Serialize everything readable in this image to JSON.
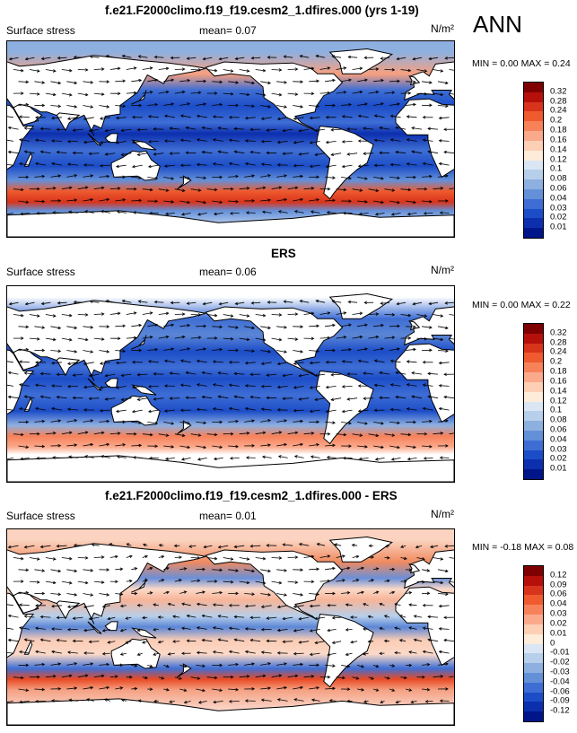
{
  "annotation": "ANN",
  "panels": [
    {
      "title": "f.e21.F2000climo.f19_f19.cesm2_1.dfires.000 (yrs 1-19)",
      "variable": "Surface stress",
      "mean_label": "mean=  0.07",
      "units": "N/m²",
      "minmax": "MIN =  0.00 MAX =  0.24",
      "levels": [
        "0.32",
        "0.28",
        "0.24",
        "0.2",
        "0.18",
        "0.16",
        "0.14",
        "0.12",
        "0.1",
        "0.08",
        "0.06",
        "0.04",
        "0.03",
        "0.02",
        "0.01"
      ]
    },
    {
      "title": "ERS",
      "variable": "Surface stress",
      "mean_label": "mean=  0.06",
      "units": "N/m²",
      "minmax": "MIN =  0.00 MAX =  0.22",
      "levels": [
        "0.32",
        "0.28",
        "0.24",
        "0.2",
        "0.18",
        "0.16",
        "0.14",
        "0.12",
        "0.1",
        "0.08",
        "0.06",
        "0.04",
        "0.03",
        "0.02",
        "0.01"
      ]
    },
    {
      "title": "f.e21.F2000climo.f19_f19.cesm2_1.dfires.000 - ERS",
      "variable": "Surface stress",
      "mean_label": "mean=  0.01",
      "units": "N/m²",
      "minmax": "MIN = -0.18 MAX =  0.08",
      "levels": [
        "0.12",
        "0.09",
        "0.06",
        "0.04",
        "0.03",
        "0.02",
        "0.01",
        "0",
        "-0.01",
        "-0.02",
        "-0.03",
        "-0.04",
        "-0.06",
        "-0.09",
        "-0.12"
      ]
    }
  ],
  "colors": {
    "colorbar": [
      "#7f0000",
      "#b5100a",
      "#d8341b",
      "#ef5a2e",
      "#f7825a",
      "#fba98b",
      "#fdcfb5",
      "#fcecd9",
      "#dbe6f4",
      "#b7cfea",
      "#8eb0e0",
      "#6490d8",
      "#3e6ed4",
      "#1c4dc8",
      "#0c2fae",
      "#00158a"
    ],
    "land": "#ffffff",
    "coast": "#000000"
  },
  "chart_data": [
    {
      "type": "heatmap",
      "title": "f.e21.F2000climo.f19_f19.cesm2_1.dfires.000 (yrs 1-19)",
      "variable": "Surface stress",
      "units": "N/m^2",
      "mean": 0.07,
      "min": 0.0,
      "max": 0.24,
      "contour_levels": [
        0.01,
        0.02,
        0.03,
        0.04,
        0.06,
        0.08,
        0.1,
        0.12,
        0.14,
        0.16,
        0.18,
        0.2,
        0.24,
        0.28,
        0.32
      ],
      "overlay": "wind stress vectors"
    },
    {
      "type": "heatmap",
      "title": "ERS",
      "variable": "Surface stress",
      "units": "N/m^2",
      "mean": 0.06,
      "min": 0.0,
      "max": 0.22,
      "contour_levels": [
        0.01,
        0.02,
        0.03,
        0.04,
        0.06,
        0.08,
        0.1,
        0.12,
        0.14,
        0.16,
        0.18,
        0.2,
        0.24,
        0.28,
        0.32
      ],
      "overlay": "wind stress vectors"
    },
    {
      "type": "heatmap",
      "title": "f.e21.F2000climo.f19_f19.cesm2_1.dfires.000 - ERS",
      "variable": "Surface stress",
      "units": "N/m^2",
      "mean": 0.01,
      "min": -0.18,
      "max": 0.08,
      "contour_levels": [
        -0.12,
        -0.09,
        -0.06,
        -0.04,
        -0.03,
        -0.02,
        -0.01,
        0,
        0.01,
        0.02,
        0.03,
        0.04,
        0.06,
        0.09,
        0.12
      ],
      "overlay": "wind stress vectors"
    }
  ]
}
